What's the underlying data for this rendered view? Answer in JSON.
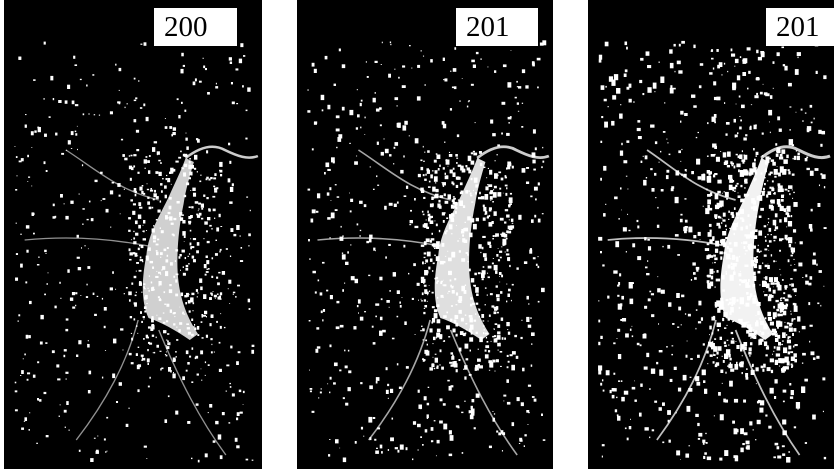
{
  "panels": [
    {
      "label": "200",
      "intensity": 0.55
    },
    {
      "label": "201",
      "intensity": 0.75
    },
    {
      "label": "201",
      "intensity": 1.0
    }
  ],
  "colors": {
    "background": "#000000",
    "foreground": "#ffffff",
    "page": "#ffffff"
  }
}
